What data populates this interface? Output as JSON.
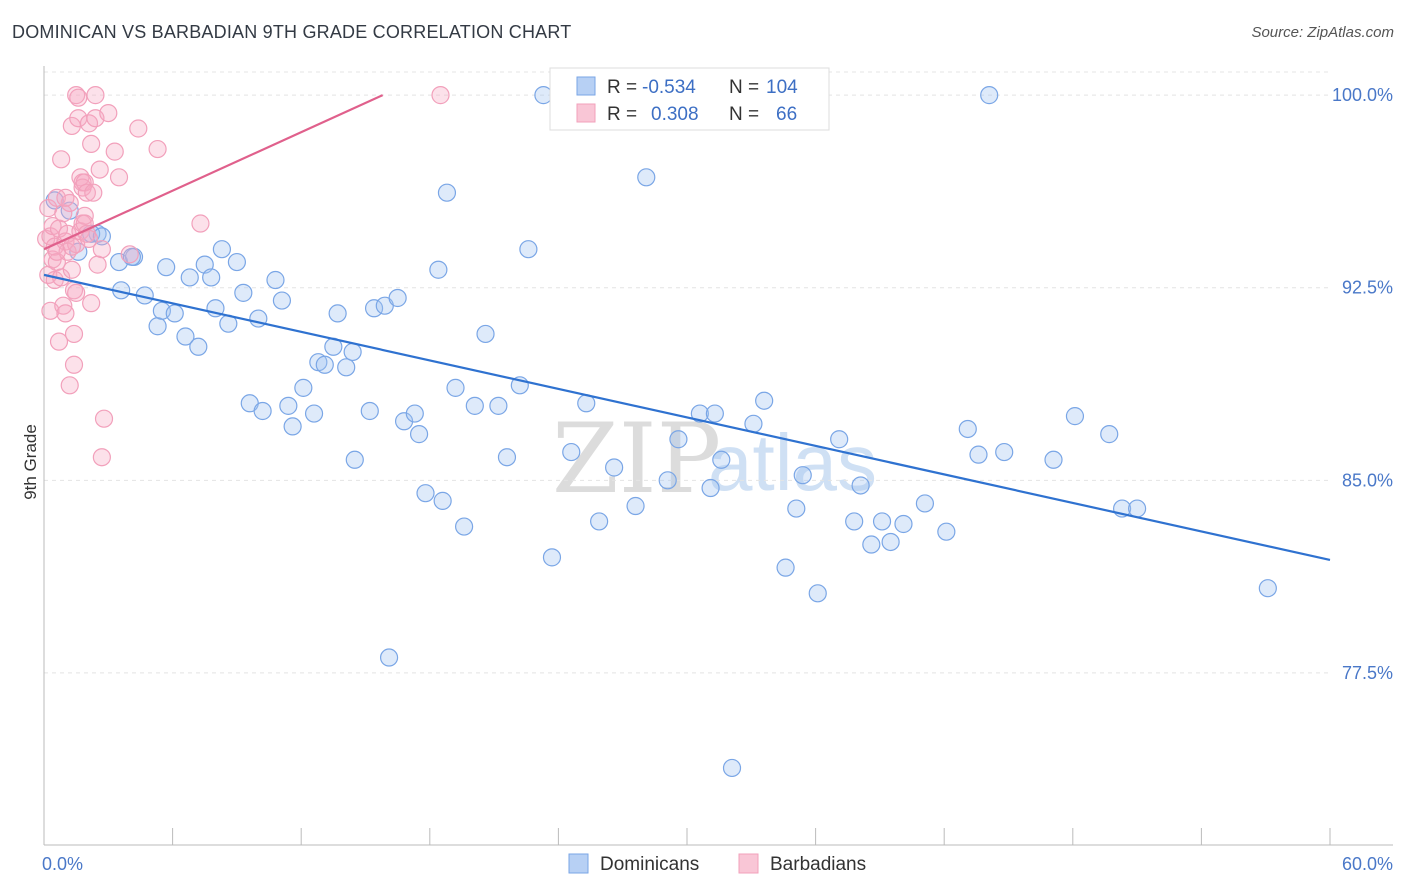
{
  "header": {
    "title": "DOMINICAN VS BARBADIAN 9TH GRADE CORRELATION CHART",
    "source": "Source: ZipAtlas.com"
  },
  "watermark": {
    "zip": "ZIP",
    "atlas": "atlas"
  },
  "chart_data": {
    "type": "scatter",
    "title": "DOMINICAN VS BARBADIAN 9TH GRADE CORRELATION CHART",
    "xlabel": "",
    "ylabel": "9th Grade",
    "xlim": [
      0,
      60
    ],
    "ylim": [
      70.8,
      100.9
    ],
    "x_tick_labels": [
      {
        "value": 0,
        "label": "0.0%"
      },
      {
        "value": 60,
        "label": "60.0%"
      }
    ],
    "y_tick_labels": [
      {
        "value": 100,
        "label": "100.0%"
      },
      {
        "value": 92.5,
        "label": "92.5%"
      },
      {
        "value": 85,
        "label": "85.0%"
      },
      {
        "value": 77.5,
        "label": "77.5%"
      }
    ],
    "grid": true,
    "legend_position": "bottom-center",
    "stats_box": [
      {
        "r_label": "R =",
        "r_value": "-0.534",
        "n_label": "N =",
        "n_value": "104"
      },
      {
        "r_label": "R =",
        "r_value": "0.308",
        "n_label": "N =",
        "n_value": "66"
      }
    ],
    "series": [
      {
        "name": "Dominicans",
        "color": "#7aa6e6",
        "line_color": "#2f72d0",
        "trend": [
          [
            0,
            93.0
          ],
          [
            60,
            81.9
          ]
        ],
        "points": [
          [
            0.5,
            95.9
          ],
          [
            1.2,
            95.5
          ],
          [
            2.5,
            94.6
          ],
          [
            1.6,
            93.9
          ],
          [
            2.2,
            94.6
          ],
          [
            2.7,
            94.5
          ],
          [
            3.5,
            93.5
          ],
          [
            4.2,
            93.7
          ],
          [
            4.1,
            93.7
          ],
          [
            3.6,
            92.4
          ],
          [
            4.7,
            92.2
          ],
          [
            5.3,
            91.0
          ],
          [
            5.5,
            91.6
          ],
          [
            6.1,
            91.5
          ],
          [
            5.7,
            93.3
          ],
          [
            6.6,
            90.6
          ],
          [
            6.8,
            92.9
          ],
          [
            7.2,
            90.2
          ],
          [
            7.5,
            93.4
          ],
          [
            7.8,
            92.9
          ],
          [
            8.0,
            91.7
          ],
          [
            8.3,
            94.0
          ],
          [
            8.6,
            91.1
          ],
          [
            9.0,
            93.5
          ],
          [
            9.3,
            92.3
          ],
          [
            9.6,
            88.0
          ],
          [
            10.0,
            91.3
          ],
          [
            10.2,
            87.7
          ],
          [
            10.8,
            92.8
          ],
          [
            11.1,
            92.0
          ],
          [
            11.4,
            87.9
          ],
          [
            11.6,
            87.1
          ],
          [
            12.1,
            88.6
          ],
          [
            12.6,
            87.6
          ],
          [
            12.8,
            89.6
          ],
          [
            13.1,
            89.5
          ],
          [
            13.5,
            90.2
          ],
          [
            13.7,
            91.5
          ],
          [
            14.1,
            89.4
          ],
          [
            14.4,
            90.0
          ],
          [
            14.5,
            85.8
          ],
          [
            15.2,
            87.7
          ],
          [
            15.4,
            91.7
          ],
          [
            15.9,
            91.8
          ],
          [
            16.1,
            78.1
          ],
          [
            16.5,
            92.1
          ],
          [
            16.8,
            87.3
          ],
          [
            17.3,
            87.6
          ],
          [
            17.5,
            86.8
          ],
          [
            17.8,
            84.5
          ],
          [
            18.4,
            93.2
          ],
          [
            18.6,
            84.2
          ],
          [
            18.8,
            96.2
          ],
          [
            19.2,
            88.6
          ],
          [
            19.6,
            83.2
          ],
          [
            20.1,
            87.9
          ],
          [
            20.6,
            90.7
          ],
          [
            21.2,
            87.9
          ],
          [
            21.6,
            85.9
          ],
          [
            22.2,
            88.7
          ],
          [
            22.6,
            94.0
          ],
          [
            23.3,
            100.0
          ],
          [
            23.7,
            82.0
          ],
          [
            24.1,
            100.0
          ],
          [
            24.6,
            86.1
          ],
          [
            25.3,
            88.0
          ],
          [
            25.9,
            83.4
          ],
          [
            26.6,
            85.5
          ],
          [
            27.1,
            100.0
          ],
          [
            27.6,
            84.0
          ],
          [
            28.1,
            96.8
          ],
          [
            29.1,
            85.0
          ],
          [
            29.6,
            86.6
          ],
          [
            30.6,
            87.6
          ],
          [
            31.1,
            84.7
          ],
          [
            31.3,
            87.6
          ],
          [
            31.6,
            85.8
          ],
          [
            32.1,
            73.8
          ],
          [
            32.6,
            100.0
          ],
          [
            33.1,
            87.2
          ],
          [
            33.6,
            88.1
          ],
          [
            34.6,
            81.6
          ],
          [
            35.1,
            83.9
          ],
          [
            35.4,
            85.2
          ],
          [
            36.1,
            80.6
          ],
          [
            37.1,
            86.6
          ],
          [
            37.8,
            83.4
          ],
          [
            38.1,
            84.8
          ],
          [
            38.6,
            82.5
          ],
          [
            39.1,
            83.4
          ],
          [
            39.5,
            82.6
          ],
          [
            40.1,
            83.3
          ],
          [
            41.1,
            84.1
          ],
          [
            42.1,
            83.0
          ],
          [
            43.1,
            87.0
          ],
          [
            43.6,
            86.0
          ],
          [
            44.1,
            100.0
          ],
          [
            44.8,
            86.1
          ],
          [
            47.1,
            85.8
          ],
          [
            48.1,
            87.5
          ],
          [
            49.7,
            86.8
          ],
          [
            50.3,
            83.9
          ],
          [
            51.0,
            83.9
          ],
          [
            57.1,
            80.8
          ]
        ]
      },
      {
        "name": "Barbadians",
        "color": "#f2a0bb",
        "line_color": "#e0608c",
        "trend": [
          [
            0,
            94.0
          ],
          [
            15.8,
            100.0
          ]
        ],
        "points": [
          [
            0.1,
            94.4
          ],
          [
            0.2,
            95.6
          ],
          [
            0.2,
            93.0
          ],
          [
            0.3,
            94.5
          ],
          [
            0.3,
            91.6
          ],
          [
            0.4,
            94.9
          ],
          [
            0.4,
            93.6
          ],
          [
            0.5,
            92.8
          ],
          [
            0.5,
            94.1
          ],
          [
            0.6,
            96.0
          ],
          [
            0.6,
            93.5
          ],
          [
            0.7,
            90.4
          ],
          [
            0.7,
            94.8
          ],
          [
            0.8,
            97.5
          ],
          [
            0.8,
            92.9
          ],
          [
            0.9,
            95.4
          ],
          [
            0.9,
            91.8
          ],
          [
            1.0,
            94.3
          ],
          [
            1.0,
            91.5
          ],
          [
            1.1,
            93.9
          ],
          [
            1.1,
            94.6
          ],
          [
            1.2,
            88.7
          ],
          [
            1.2,
            95.8
          ],
          [
            1.3,
            93.2
          ],
          [
            1.3,
            98.8
          ],
          [
            1.4,
            90.7
          ],
          [
            1.4,
            89.5
          ],
          [
            1.4,
            92.4
          ],
          [
            1.5,
            94.2
          ],
          [
            1.5,
            92.3
          ],
          [
            1.5,
            100.0
          ],
          [
            1.6,
            99.9
          ],
          [
            1.6,
            99.1
          ],
          [
            1.7,
            94.7
          ],
          [
            1.7,
            96.8
          ],
          [
            1.8,
            96.6
          ],
          [
            1.8,
            96.4
          ],
          [
            1.8,
            95.0
          ],
          [
            1.9,
            96.6
          ],
          [
            1.9,
            95.3
          ],
          [
            1.9,
            95.0
          ],
          [
            2.0,
            96.2
          ],
          [
            2.0,
            94.6
          ],
          [
            2.1,
            98.9
          ],
          [
            2.1,
            94.4
          ],
          [
            2.2,
            98.1
          ],
          [
            2.2,
            91.9
          ],
          [
            2.3,
            96.2
          ],
          [
            2.4,
            99.1
          ],
          [
            2.4,
            100.0
          ],
          [
            2.5,
            93.4
          ],
          [
            2.6,
            97.1
          ],
          [
            2.7,
            85.9
          ],
          [
            2.7,
            94.0
          ],
          [
            2.8,
            87.4
          ],
          [
            3.0,
            99.3
          ],
          [
            3.3,
            97.8
          ],
          [
            3.5,
            96.8
          ],
          [
            4.0,
            93.8
          ],
          [
            4.4,
            98.7
          ],
          [
            5.3,
            97.9
          ],
          [
            7.3,
            95.0
          ],
          [
            18.5,
            100.0
          ],
          [
            0.6,
            93.9
          ],
          [
            1.0,
            96.0
          ],
          [
            1.3,
            94.1
          ]
        ]
      }
    ]
  }
}
